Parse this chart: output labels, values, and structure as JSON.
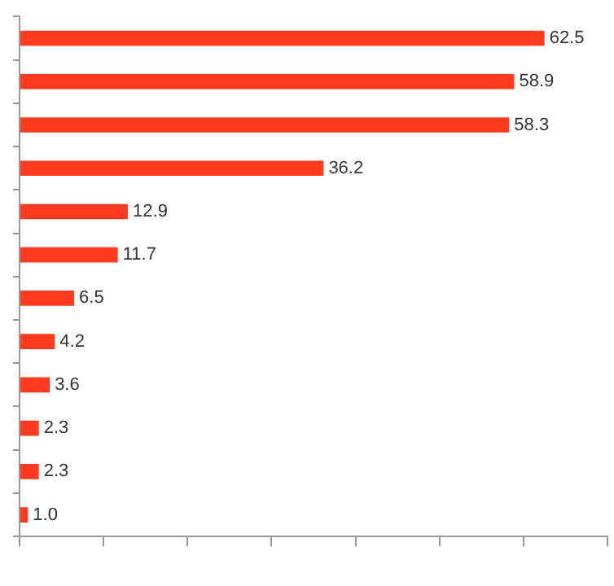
{
  "chart_data": {
    "type": "bar",
    "orientation": "horizontal",
    "categories": [
      null,
      null,
      null,
      null,
      null,
      null,
      null,
      null,
      null,
      null,
      null,
      null
    ],
    "values": [
      62.5,
      58.9,
      58.3,
      36.2,
      12.9,
      11.7,
      6.5,
      4.2,
      3.6,
      2.3,
      2.3,
      1.0
    ],
    "color": "#ff3a1e",
    "xlim": [
      0,
      70
    ],
    "xticks": [
      {
        "value": 0,
        "label": null
      },
      {
        "value": 10,
        "label": null
      },
      {
        "value": 20,
        "label": null
      },
      {
        "value": 30,
        "label": null
      },
      {
        "value": 40,
        "label": null
      },
      {
        "value": 50,
        "label": null
      },
      {
        "value": 60,
        "label": null
      },
      {
        "value": 70,
        "label": null
      }
    ],
    "value_labels": [
      "62.5",
      "58.9",
      "58.3",
      "36.2",
      "12.9",
      "11.7",
      "6.5",
      "4.2",
      "3.6",
      "2.3",
      "2.3",
      "1.0"
    ],
    "grid": false,
    "legend": false
  }
}
